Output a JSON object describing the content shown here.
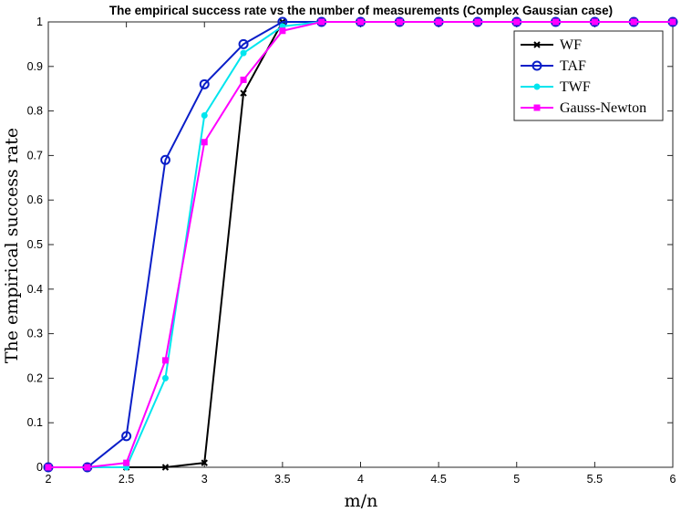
{
  "chart_data": {
    "type": "line",
    "title": "The empirical success rate vs the number of measurements (Complex Gaussian case)",
    "xlabel": "m/n",
    "ylabel": "The empirical success rate",
    "xlim": [
      2,
      6
    ],
    "ylim": [
      0,
      1
    ],
    "xticks": [
      "2",
      "2.5",
      "3",
      "3.5",
      "4",
      "4.5",
      "5",
      "5.5",
      "6"
    ],
    "yticks": [
      "0",
      "0.1",
      "0.2",
      "0.3",
      "0.4",
      "0.5",
      "0.6",
      "0.7",
      "0.8",
      "0.9",
      "1"
    ],
    "x": [
      2,
      2.25,
      2.5,
      2.75,
      3,
      3.25,
      3.5,
      3.75,
      4,
      4.25,
      4.5,
      4.75,
      5,
      5.25,
      5.5,
      5.75,
      6
    ],
    "grid": false,
    "legend_position": "top-right",
    "series": [
      {
        "name": "WF",
        "color": "#000000",
        "marker": "x",
        "values": [
          0,
          0,
          0,
          0,
          0.01,
          0.84,
          1,
          1,
          1,
          1,
          1,
          1,
          1,
          1,
          1,
          1,
          1
        ]
      },
      {
        "name": "TAF",
        "color": "#0a1ec8",
        "marker": "circle",
        "values": [
          0,
          0,
          0.07,
          0.69,
          0.86,
          0.95,
          1,
          1,
          1,
          1,
          1,
          1,
          1,
          1,
          1,
          1,
          1
        ]
      },
      {
        "name": "TWF",
        "color": "#00e5ee",
        "marker": "dot",
        "values": [
          0,
          0,
          0,
          0.2,
          0.79,
          0.93,
          0.99,
          1,
          1,
          1,
          1,
          1,
          1,
          1,
          1,
          1,
          1
        ]
      },
      {
        "name": "Gauss-Newton",
        "color": "#ff00ff",
        "marker": "square",
        "values": [
          0,
          0,
          0.01,
          0.24,
          0.73,
          0.87,
          0.98,
          1,
          1,
          1,
          1,
          1,
          1,
          1,
          1,
          1,
          1
        ]
      }
    ]
  }
}
